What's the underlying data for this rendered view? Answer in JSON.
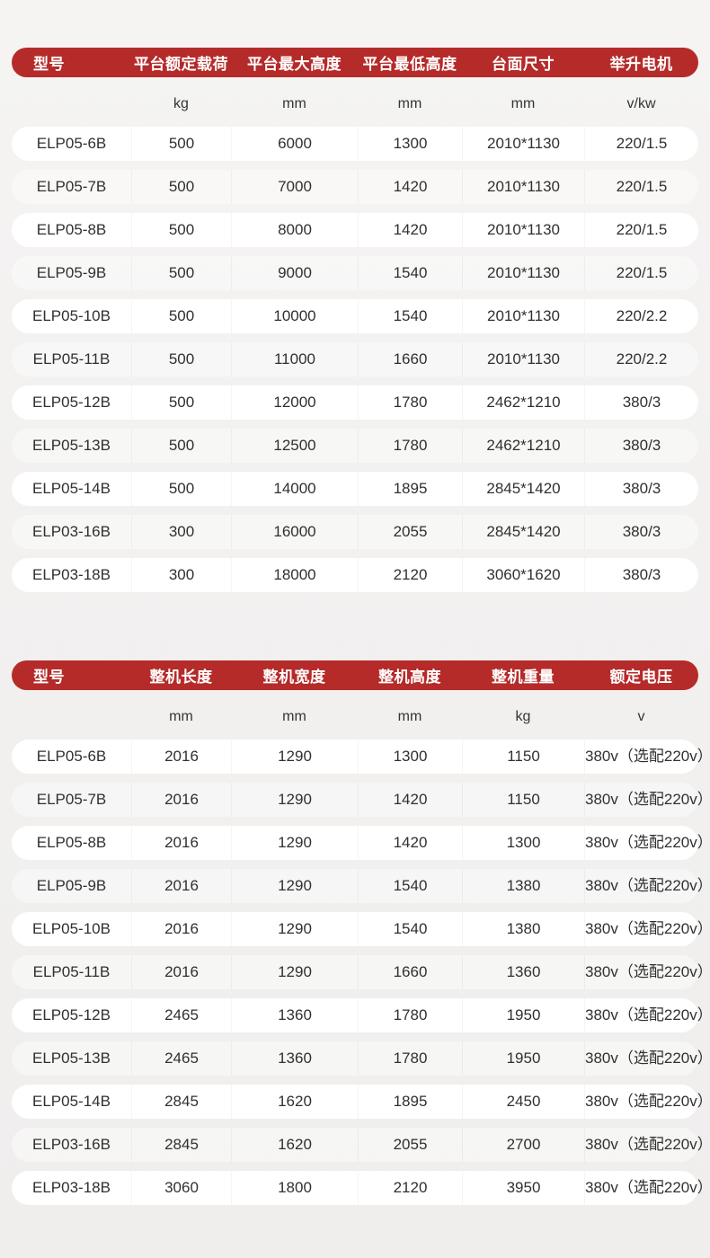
{
  "theme": {
    "header_bg": "#b52b2a",
    "header_text": "#ffffff",
    "row_bg": "#ffffff",
    "page_bg": "#f2f1f0",
    "text": "#303030"
  },
  "table1": {
    "headers": [
      "型号",
      "平台额定载荷",
      "平台最大高度",
      "平台最低高度",
      "台面尺寸",
      "举升电机"
    ],
    "units": [
      "",
      "kg",
      "mm",
      "mm",
      "mm",
      "v/kw"
    ],
    "rows": [
      [
        "ELP05-6B",
        "500",
        "6000",
        "1300",
        "2010*1130",
        "220/1.5"
      ],
      [
        "ELP05-7B",
        "500",
        "7000",
        "1420",
        "2010*1130",
        "220/1.5"
      ],
      [
        "ELP05-8B",
        "500",
        "8000",
        "1420",
        "2010*1130",
        "220/1.5"
      ],
      [
        "ELP05-9B",
        "500",
        "9000",
        "1540",
        "2010*1130",
        "220/1.5"
      ],
      [
        "ELP05-10B",
        "500",
        "10000",
        "1540",
        "2010*1130",
        "220/2.2"
      ],
      [
        "ELP05-11B",
        "500",
        "11000",
        "1660",
        "2010*1130",
        "220/2.2"
      ],
      [
        "ELP05-12B",
        "500",
        "12000",
        "1780",
        "2462*1210",
        "380/3"
      ],
      [
        "ELP05-13B",
        "500",
        "12500",
        "1780",
        "2462*1210",
        "380/3"
      ],
      [
        "ELP05-14B",
        "500",
        "14000",
        "1895",
        "2845*1420",
        "380/3"
      ],
      [
        "ELP03-16B",
        "300",
        "16000",
        "2055",
        "2845*1420",
        "380/3"
      ],
      [
        "ELP03-18B",
        "300",
        "18000",
        "2120",
        "3060*1620",
        "380/3"
      ]
    ]
  },
  "table2": {
    "headers": [
      "型号",
      "整机长度",
      "整机宽度",
      "整机高度",
      "整机重量",
      "额定电压"
    ],
    "units": [
      "",
      "mm",
      "mm",
      "mm",
      "kg",
      "v"
    ],
    "rows": [
      [
        "ELP05-6B",
        "2016",
        "1290",
        "1300",
        "1150",
        "380v（选配220v）"
      ],
      [
        "ELP05-7B",
        "2016",
        "1290",
        "1420",
        "1150",
        "380v（选配220v）"
      ],
      [
        "ELP05-8B",
        "2016",
        "1290",
        "1420",
        "1300",
        "380v（选配220v）"
      ],
      [
        "ELP05-9B",
        "2016",
        "1290",
        "1540",
        "1380",
        "380v（选配220v）"
      ],
      [
        "ELP05-10B",
        "2016",
        "1290",
        "1540",
        "1380",
        "380v（选配220v）"
      ],
      [
        "ELP05-11B",
        "2016",
        "1290",
        "1660",
        "1360",
        "380v（选配220v）"
      ],
      [
        "ELP05-12B",
        "2465",
        "1360",
        "1780",
        "1950",
        "380v（选配220v）"
      ],
      [
        "ELP05-13B",
        "2465",
        "1360",
        "1780",
        "1950",
        "380v（选配220v）"
      ],
      [
        "ELP05-14B",
        "2845",
        "1620",
        "1895",
        "2450",
        "380v（选配220v）"
      ],
      [
        "ELP03-16B",
        "2845",
        "1620",
        "2055",
        "2700",
        "380v（选配220v）"
      ],
      [
        "ELP03-18B",
        "3060",
        "1800",
        "2120",
        "3950",
        "380v（选配220v）"
      ]
    ]
  }
}
